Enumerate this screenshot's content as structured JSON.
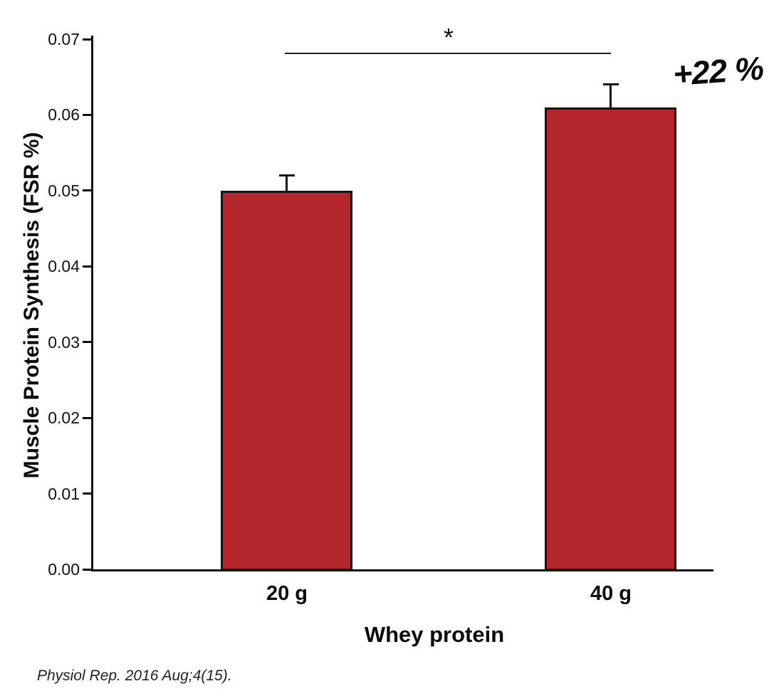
{
  "chart_data": {
    "type": "bar",
    "title": "",
    "categories": [
      "20 g",
      "40 g"
    ],
    "values": [
      0.05,
      0.061
    ],
    "errors_plus": [
      0.002,
      0.003
    ],
    "xlabel": "Whey protein",
    "ylabel": "Muscle Protein Synthesis (FSR %)",
    "ylim": [
      0,
      0.07
    ],
    "yticks": [
      0.0,
      0.01,
      0.02,
      0.03,
      0.04,
      0.05,
      0.06,
      0.07
    ],
    "ytick_labels": [
      "0.00",
      "0.01",
      "0.02",
      "0.03",
      "0.04",
      "0.05",
      "0.06",
      "0.07"
    ],
    "grid": false,
    "legend": "none",
    "bar_color": "#b3262c",
    "bar_border_color": "#151515",
    "significance_label": "*",
    "annotation": "+22 %"
  },
  "citation": "Physiol Rep. 2016 Aug;4(15)."
}
